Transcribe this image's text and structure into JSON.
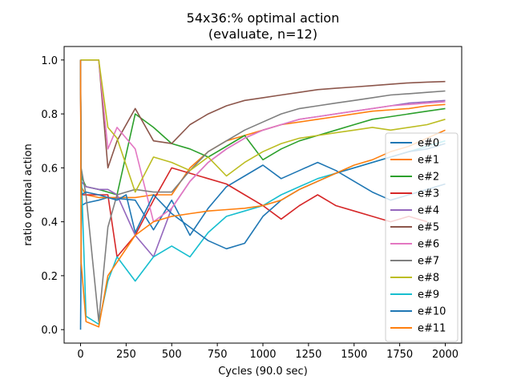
{
  "chart_data": {
    "type": "line",
    "title": "54x36:% optimal action",
    "subtitle": "(evaluate, n=12)",
    "xlabel": "Cycles (90.0 sec)",
    "ylabel": "ratio optimal action",
    "xlim": [
      -90,
      2090
    ],
    "ylim": [
      -0.05,
      1.05
    ],
    "xticks": [
      0,
      250,
      500,
      750,
      1000,
      1250,
      1500,
      1750,
      2000
    ],
    "yticks": [
      0.0,
      0.2,
      0.4,
      0.6,
      0.8,
      1.0
    ],
    "ytick_labels": [
      "0.0",
      "0.2",
      "0.4",
      "0.6",
      "0.8",
      "1.0"
    ],
    "grid": false,
    "legend_position": "right",
    "series": [
      {
        "name": "e#0",
        "color": "#1f77b4",
        "x": [
          0,
          5,
          30,
          100,
          150,
          300,
          400,
          500,
          600,
          700,
          800,
          900,
          1000,
          1100,
          1200,
          1300,
          1400,
          1500,
          1600,
          1700,
          1800,
          1900,
          2000
        ],
        "y": [
          0,
          0.46,
          0.47,
          0.48,
          0.49,
          0.48,
          0.37,
          0.48,
          0.35,
          0.45,
          0.53,
          0.57,
          0.61,
          0.56,
          0.59,
          0.62,
          0.59,
          0.55,
          0.51,
          0.48,
          0.5,
          0.52,
          0.54
        ]
      },
      {
        "name": "e#1",
        "color": "#ff7f0e",
        "x": [
          0,
          3,
          30,
          100,
          150,
          300,
          400,
          500,
          600,
          700,
          800,
          900,
          1000,
          1100,
          1200,
          1300,
          1400,
          1500,
          1600,
          1700,
          1800,
          1900,
          2000
        ],
        "y": [
          1.0,
          0.53,
          0.5,
          0.49,
          0.49,
          0.49,
          0.5,
          0.5,
          0.6,
          0.66,
          0.7,
          0.72,
          0.74,
          0.76,
          0.77,
          0.78,
          0.79,
          0.8,
          0.81,
          0.815,
          0.82,
          0.83,
          0.835
        ]
      },
      {
        "name": "e#2",
        "color": "#2ca02c",
        "x": [
          0,
          3,
          30,
          100,
          150,
          200,
          300,
          400,
          500,
          600,
          700,
          800,
          900,
          1000,
          1100,
          1200,
          1300,
          1400,
          1500,
          1600,
          1700,
          1800,
          1900,
          2000
        ],
        "y": [
          1.0,
          0.57,
          0.53,
          0.52,
          0.51,
          0.5,
          0.8,
          0.75,
          0.69,
          0.67,
          0.64,
          0.68,
          0.72,
          0.63,
          0.67,
          0.7,
          0.72,
          0.74,
          0.76,
          0.78,
          0.79,
          0.8,
          0.81,
          0.82
        ]
      },
      {
        "name": "e#3",
        "color": "#d62728",
        "x": [
          0,
          3,
          30,
          100,
          150,
          200,
          300,
          400,
          500,
          600,
          700,
          800,
          900,
          1000,
          1100,
          1200,
          1300,
          1400,
          1500,
          1600,
          1700,
          1800,
          1900
        ],
        "y": [
          1.0,
          0.5,
          0.5,
          0.5,
          0.5,
          0.27,
          0.35,
          0.48,
          0.6,
          0.58,
          0.56,
          0.54,
          0.5,
          0.46,
          0.41,
          0.46,
          0.5,
          0.46,
          0.44,
          0.42,
          0.4,
          0.42,
          0.4
        ]
      },
      {
        "name": "e#4",
        "color": "#9467bd",
        "x": [
          0,
          3,
          30,
          100,
          150,
          200,
          300,
          400,
          500,
          600,
          700,
          800,
          900,
          1000,
          1100,
          1200,
          1300,
          1400,
          1500,
          1600,
          1700,
          1800,
          1900,
          2000
        ],
        "y": [
          1.0,
          0.55,
          0.53,
          0.52,
          0.52,
          0.5,
          0.35,
          0.27,
          0.45,
          0.55,
          0.62,
          0.67,
          0.71,
          0.74,
          0.76,
          0.78,
          0.79,
          0.8,
          0.81,
          0.82,
          0.83,
          0.84,
          0.845,
          0.85
        ]
      },
      {
        "name": "e#5",
        "color": "#8c564b",
        "x": [
          0,
          3,
          30,
          100,
          150,
          200,
          300,
          400,
          500,
          600,
          700,
          800,
          900,
          1000,
          1100,
          1200,
          1300,
          1400,
          1500,
          1600,
          1700,
          1800,
          1900,
          2000
        ],
        "y": [
          1.0,
          1.0,
          1.0,
          1.0,
          0.6,
          0.7,
          0.82,
          0.7,
          0.69,
          0.76,
          0.8,
          0.83,
          0.85,
          0.86,
          0.87,
          0.88,
          0.89,
          0.895,
          0.9,
          0.905,
          0.91,
          0.915,
          0.918,
          0.92
        ]
      },
      {
        "name": "e#6",
        "color": "#e377c2",
        "x": [
          0,
          3,
          30,
          100,
          150,
          200,
          300,
          400,
          500,
          600,
          700,
          800,
          900,
          1000,
          1100,
          1200,
          1300,
          1400,
          1500,
          1600,
          1700,
          1800,
          1900,
          2000
        ],
        "y": [
          1.0,
          1.0,
          1.0,
          1.0,
          0.67,
          0.75,
          0.67,
          0.4,
          0.45,
          0.55,
          0.62,
          0.67,
          0.71,
          0.74,
          0.76,
          0.78,
          0.79,
          0.8,
          0.81,
          0.82,
          0.83,
          0.835,
          0.84,
          0.845
        ]
      },
      {
        "name": "e#7",
        "color": "#7f7f7f",
        "x": [
          0,
          3,
          30,
          100,
          150,
          200,
          300,
          400,
          500,
          600,
          700,
          800,
          900,
          1000,
          1100,
          1200,
          1300,
          1400,
          1500,
          1600,
          1700,
          1800,
          1900,
          2000
        ],
        "y": [
          1.0,
          0.6,
          0.5,
          0.03,
          0.38,
          0.5,
          0.52,
          0.51,
          0.51,
          0.59,
          0.66,
          0.7,
          0.74,
          0.77,
          0.8,
          0.82,
          0.83,
          0.84,
          0.85,
          0.86,
          0.87,
          0.875,
          0.88,
          0.885
        ]
      },
      {
        "name": "e#8",
        "color": "#bcbd22",
        "x": [
          0,
          3,
          30,
          100,
          150,
          200,
          300,
          400,
          500,
          600,
          700,
          800,
          900,
          1000,
          1100,
          1200,
          1300,
          1400,
          1500,
          1600,
          1700,
          1800,
          1900,
          2000
        ],
        "y": [
          1.0,
          1.0,
          1.0,
          1.0,
          0.75,
          0.71,
          0.51,
          0.64,
          0.62,
          0.59,
          0.64,
          0.57,
          0.62,
          0.66,
          0.69,
          0.71,
          0.72,
          0.73,
          0.74,
          0.75,
          0.74,
          0.75,
          0.76,
          0.78
        ]
      },
      {
        "name": "e#9",
        "color": "#17becf",
        "x": [
          0,
          3,
          30,
          100,
          150,
          200,
          300,
          400,
          500,
          600,
          700,
          800,
          900,
          1000,
          1100,
          1200,
          1300,
          1400,
          1500,
          1600,
          1700,
          1800,
          1900,
          2000
        ],
        "y": [
          1.0,
          0.6,
          0.05,
          0.02,
          0.18,
          0.27,
          0.18,
          0.27,
          0.31,
          0.27,
          0.36,
          0.42,
          0.44,
          0.46,
          0.5,
          0.53,
          0.56,
          0.58,
          0.6,
          0.62,
          0.64,
          0.66,
          0.68,
          0.7
        ]
      },
      {
        "name": "e#10",
        "color": "#1f77b4",
        "x": [
          0,
          3,
          30,
          100,
          150,
          200,
          250,
          300,
          400,
          500,
          600,
          700,
          800,
          900,
          1000,
          1100,
          1200,
          1300,
          1400,
          1500,
          1600,
          1700,
          1800,
          1900,
          2000
        ],
        "y": [
          1.0,
          0.5,
          0.51,
          0.5,
          0.49,
          0.48,
          0.5,
          0.36,
          0.5,
          0.43,
          0.38,
          0.33,
          0.3,
          0.32,
          0.42,
          0.48,
          0.52,
          0.55,
          0.58,
          0.6,
          0.62,
          0.64,
          0.66,
          0.67,
          0.69
        ]
      },
      {
        "name": "e#11",
        "color": "#ff7f0e",
        "x": [
          0,
          3,
          30,
          100,
          150,
          300,
          400,
          500,
          600,
          700,
          800,
          900,
          1000,
          1100,
          1200,
          1300,
          1400,
          1500,
          1600,
          1700,
          1800,
          1900,
          2000
        ],
        "y": [
          1.0,
          0.25,
          0.03,
          0.01,
          0.2,
          0.35,
          0.4,
          0.42,
          0.43,
          0.44,
          0.445,
          0.45,
          0.46,
          0.48,
          0.52,
          0.55,
          0.58,
          0.61,
          0.63,
          0.66,
          0.68,
          0.71,
          0.74
        ]
      }
    ]
  }
}
